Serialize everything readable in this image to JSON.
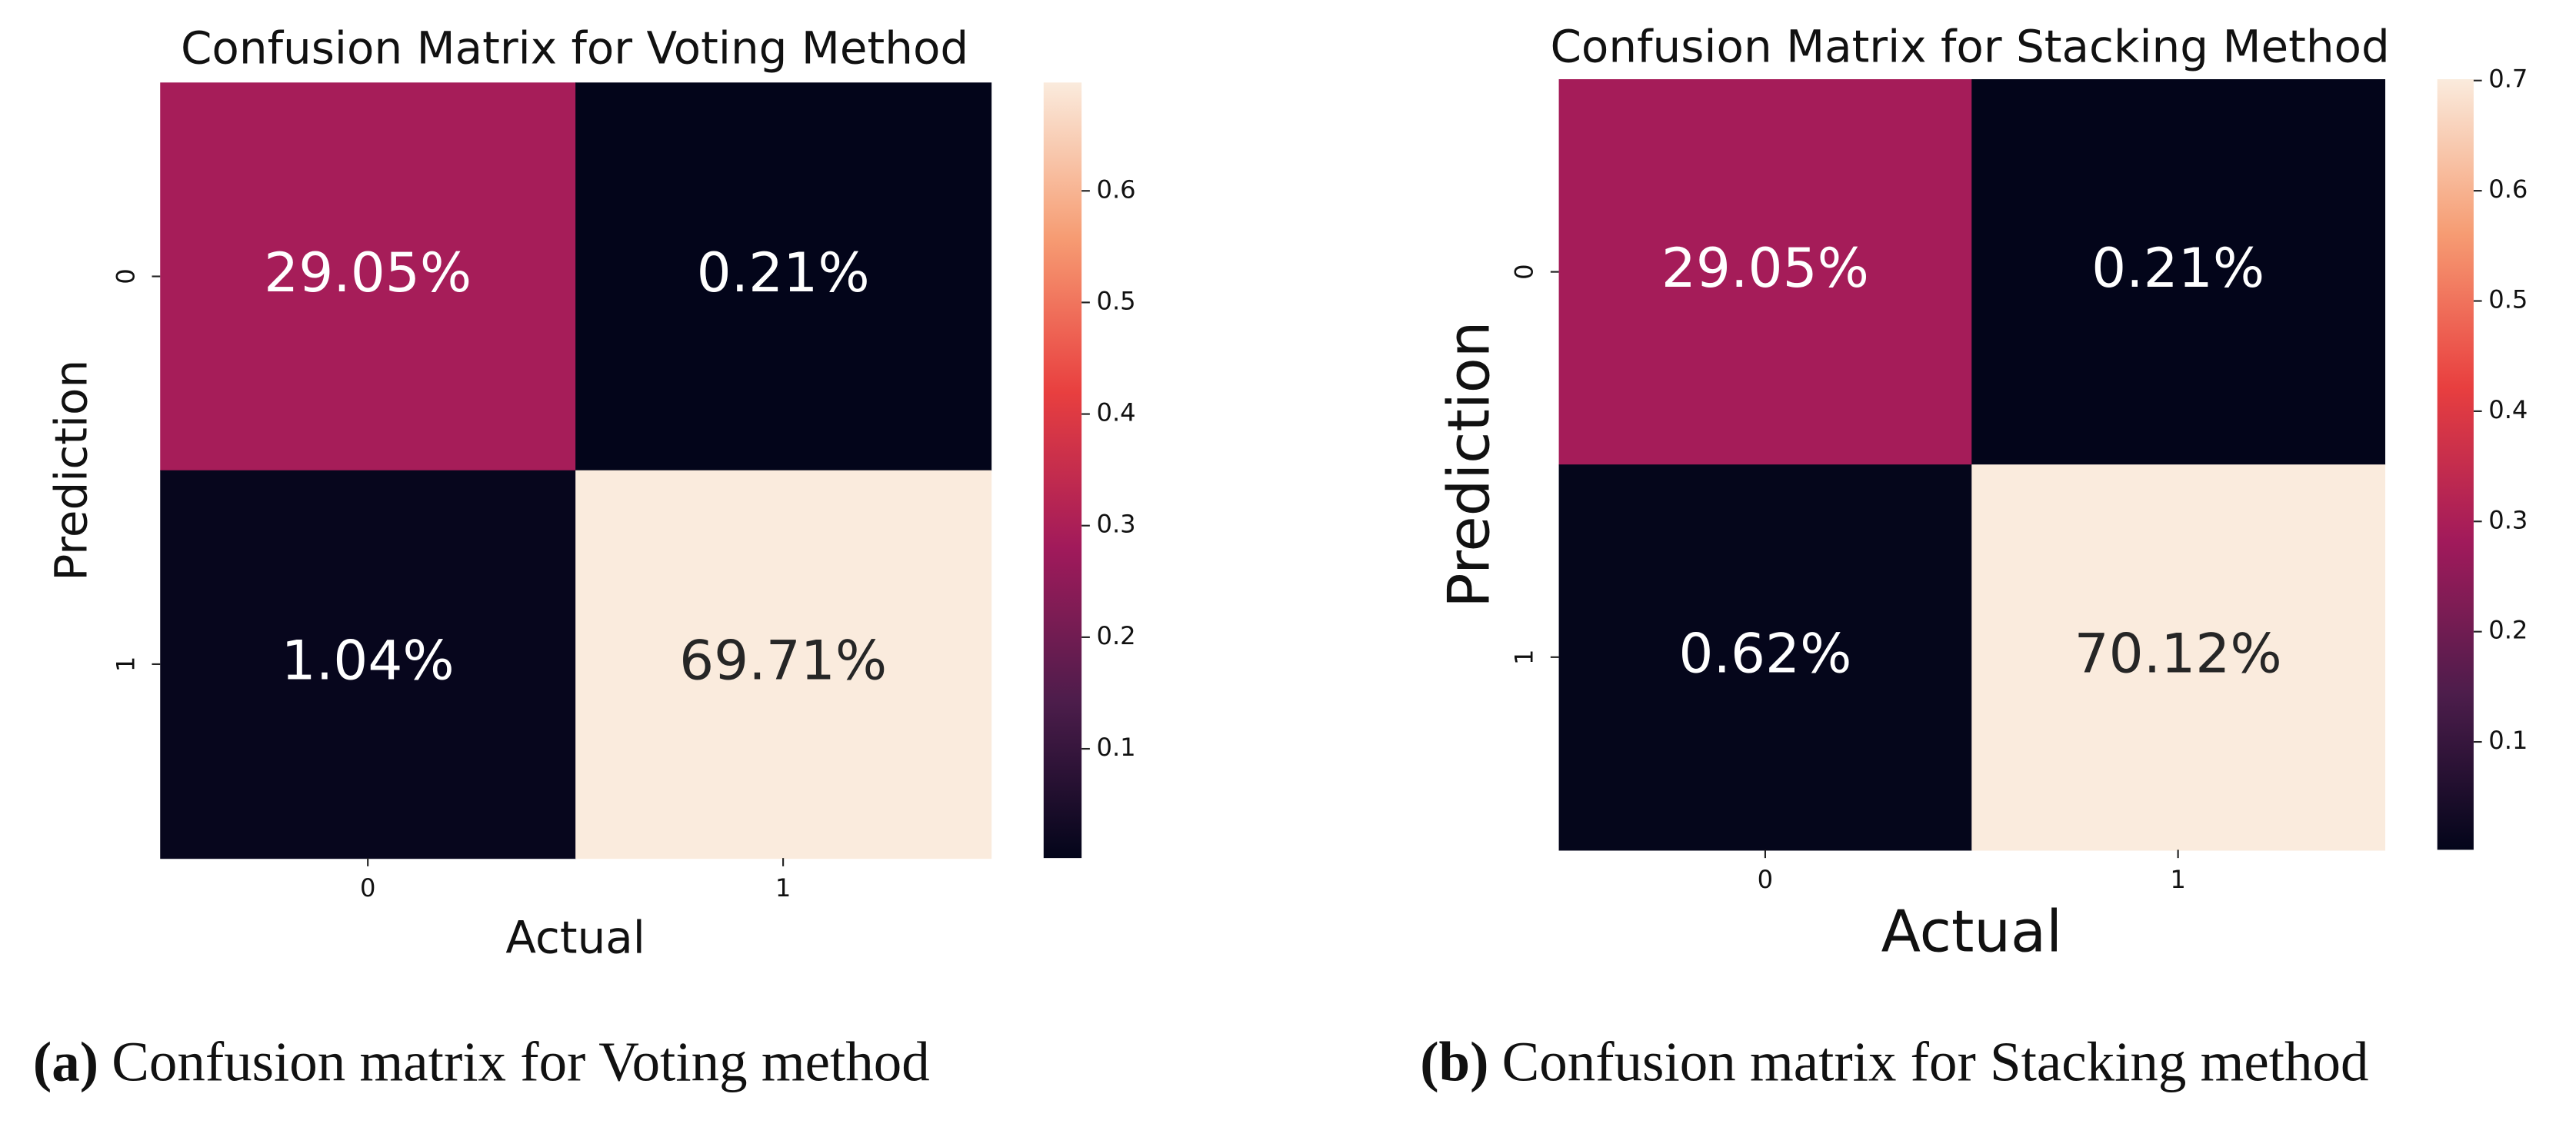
{
  "chart_data": [
    {
      "type": "heatmap",
      "title": "Confusion Matrix for Voting Method",
      "xlabel": "Actual",
      "ylabel": "Prediction",
      "x_categories": [
        "0",
        "1"
      ],
      "y_categories": [
        "0",
        "1"
      ],
      "values": [
        [
          0.2905,
          0.0021
        ],
        [
          0.0104,
          0.6971
        ]
      ],
      "value_labels": [
        [
          "29.05%",
          "0.21%"
        ],
        [
          "1.04%",
          "69.71%"
        ]
      ],
      "cmap": "rocket",
      "clim": [
        0.0021,
        0.6971
      ],
      "cticks": [
        0.1,
        0.2,
        0.3,
        0.4,
        0.5,
        0.6
      ],
      "caption_label": "(a)",
      "caption": "Confusion matrix for Voting method"
    },
    {
      "type": "heatmap",
      "title": "Confusion Matrix for Stacking Method",
      "xlabel": "Actual",
      "ylabel": "Prediction",
      "x_categories": [
        "0",
        "1"
      ],
      "y_categories": [
        "0",
        "1"
      ],
      "values": [
        [
          0.2905,
          0.0021
        ],
        [
          0.0062,
          0.7012
        ]
      ],
      "value_labels": [
        [
          "29.05%",
          "0.21%"
        ],
        [
          "0.62%",
          "70.12%"
        ]
      ],
      "cmap": "rocket",
      "clim": [
        0.0021,
        0.7012
      ],
      "cticks": [
        0.1,
        0.2,
        0.3,
        0.4,
        0.5,
        0.6,
        0.7
      ],
      "caption_label": "(b)",
      "caption": "Confusion matrix for Stacking method"
    }
  ]
}
